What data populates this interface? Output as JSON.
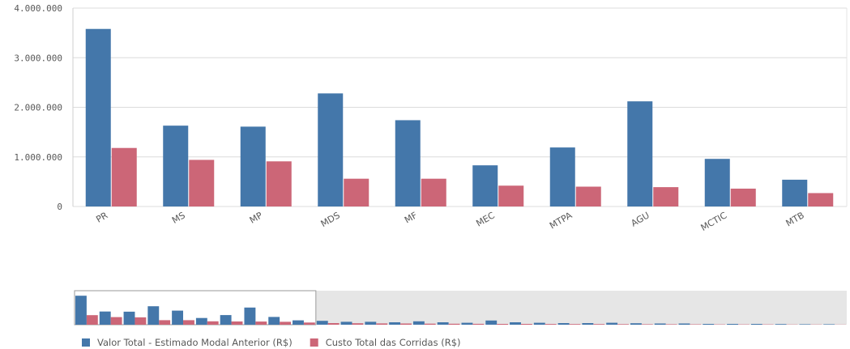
{
  "chart_data": {
    "type": "bar",
    "categories": [
      "PR",
      "MS",
      "MP",
      "MDS",
      "MF",
      "MEC",
      "MTPA",
      "AGU",
      "MCTIC",
      "MTB"
    ],
    "series": [
      {
        "name": "Valor Total - Estimado Modal Anterior (R$)",
        "color": "#4477aa",
        "values": [
          3580000,
          1630000,
          1610000,
          2280000,
          1740000,
          830000,
          1190000,
          2120000,
          960000,
          540000
        ]
      },
      {
        "name": "Custo Total das Corridas (R$)",
        "color": "#cc6677",
        "values": [
          1180000,
          940000,
          910000,
          560000,
          560000,
          420000,
          400000,
          390000,
          360000,
          270000
        ]
      }
    ],
    "y_ticks": [
      "0",
      "1.000.000",
      "2.000.000",
      "3.000.000",
      "4.000.000"
    ],
    "y_tick_values": [
      0,
      1000000,
      2000000,
      3000000,
      4000000
    ],
    "ylim": [
      0,
      4000000
    ],
    "grid": true,
    "legend_position": "bottom-left",
    "minimap": {
      "visible_count": 10,
      "series": [
        [
          3580000,
          1630000,
          1610000,
          2280000,
          1740000,
          830000,
          1190000,
          2120000,
          960000,
          540000,
          480000,
          360000,
          360000,
          300000,
          420000,
          300000,
          240000,
          520000,
          300000,
          240000,
          200000,
          200000,
          240000,
          180000,
          150000,
          150000,
          100000,
          100000,
          100000,
          80000,
          60000,
          60000
        ],
        [
          1180000,
          940000,
          910000,
          560000,
          560000,
          420000,
          400000,
          390000,
          360000,
          270000,
          200000,
          180000,
          160000,
          150000,
          130000,
          120000,
          110000,
          100000,
          100000,
          90000,
          80000,
          80000,
          70000,
          60000,
          60000,
          50000,
          40000,
          40000,
          40000,
          30000,
          30000,
          20000
        ]
      ]
    }
  }
}
